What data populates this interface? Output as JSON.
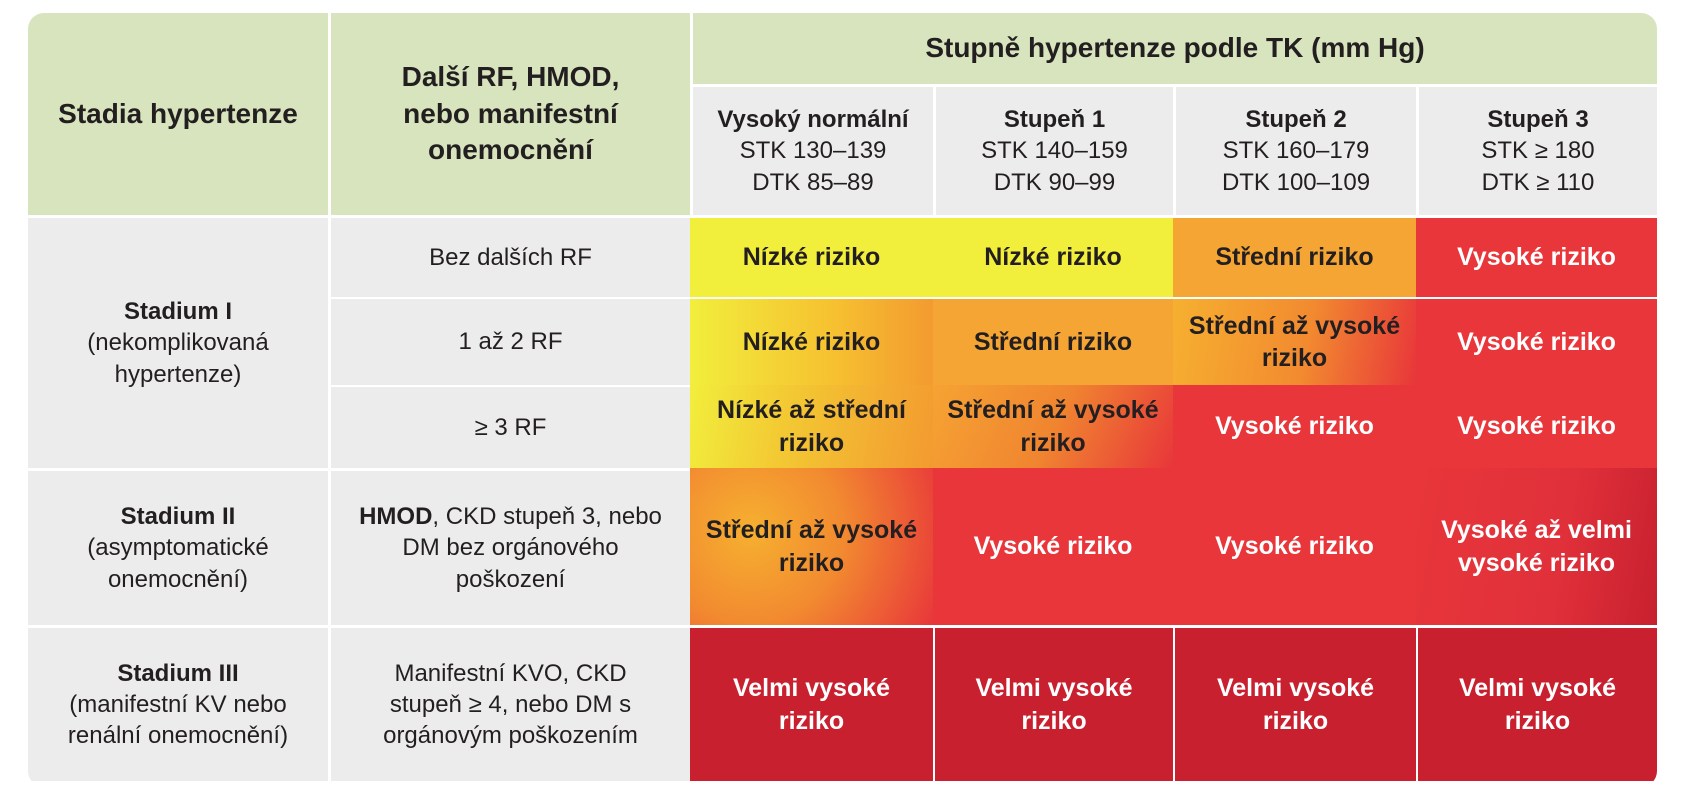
{
  "header": {
    "stages_label": "Stadia hypertenze",
    "risk_factors_label": "Další RF, HMOD, nebo manifestní onemocnění",
    "bp_grades_label": "Stupně hypertenze podle TK (mm Hg)",
    "grades": [
      {
        "title": "Vysoký normální",
        "stk": "STK 130–139",
        "dtk": "DTK 85–89"
      },
      {
        "title": "Stupeň 1",
        "stk": "STK 140–159",
        "dtk": "DTK 90–99"
      },
      {
        "title": "Stupeň 2",
        "stk": "STK 160–179",
        "dtk": "DTK 100–109"
      },
      {
        "title": "Stupeň 3",
        "stk": "STK ≥ 180",
        "dtk": "DTK ≥ 110"
      }
    ]
  },
  "stages": [
    {
      "name": "Stadium I",
      "desc": "(nekomplikovaná hypertenze)"
    },
    {
      "name": "Stadium II",
      "desc": "(asymptomatické onemocnění)"
    },
    {
      "name": "Stadium III",
      "desc": "(manifestní KV nebo renální onemocnění)"
    }
  ],
  "rows": [
    {
      "label": "Bez dalších RF",
      "risks": [
        "Nízké riziko",
        "Nízké riziko",
        "Střední riziko",
        "Vysoké riziko"
      ]
    },
    {
      "label": "1 až 2 RF",
      "risks": [
        "Nízké riziko",
        "Střední riziko",
        "Střední až vysoké riziko",
        "Vysoké riziko"
      ]
    },
    {
      "label": "≥ 3 RF",
      "risks": [
        "Nízké až střední riziko",
        "Střední až vysoké riziko",
        "Vysoké riziko",
        "Vysoké riziko"
      ]
    },
    {
      "label_bold": "HMOD",
      "label": ", CKD stupeň 3, nebo DM bez orgánového poškození",
      "risks": [
        "Střední až vysoké riziko",
        "Vysoké riziko",
        "Vysoké riziko",
        "Vysoké až velmi vysoké riziko"
      ]
    },
    {
      "label": "Manifestní KVO, CKD stupeň ≥ 4, nebo DM s orgánovým poškozením",
      "risks": [
        "Velmi vysoké riziko",
        "Velmi vysoké riziko",
        "Velmi vysoké riziko",
        "Velmi vysoké riziko"
      ]
    }
  ],
  "colors": {
    "header_green": "#d7e4bd",
    "neutral_gray": "#ececec",
    "low_yellow": "#f2ee3c",
    "moderate_orange": "#f5a533",
    "high_red": "#e8363a",
    "very_high_darkred": "#c8202f"
  }
}
